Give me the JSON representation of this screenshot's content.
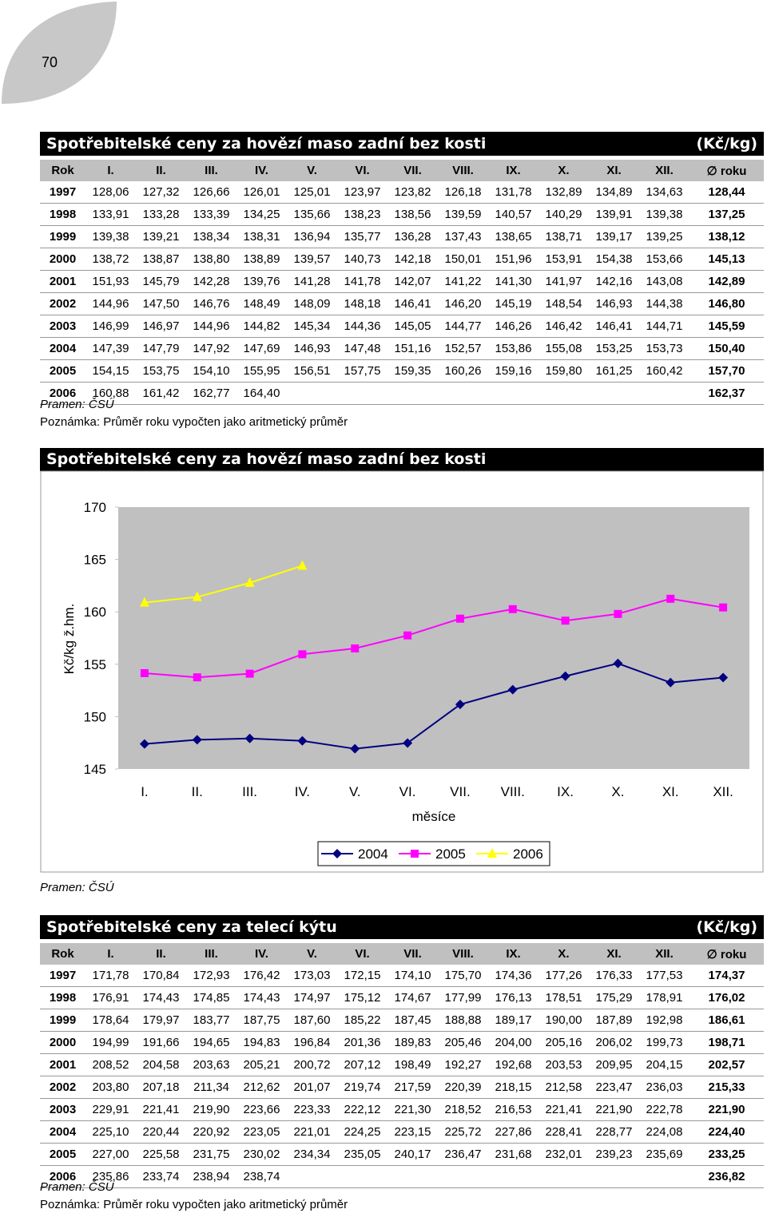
{
  "page_number": "70",
  "table1": {
    "title": "Spotřebitelské ceny za hovězí maso zadní bez kosti",
    "unit": "(Kč/kg)",
    "header": [
      "Rok",
      "I.",
      "II.",
      "III.",
      "IV.",
      "V.",
      "VI.",
      "VII.",
      "VIII.",
      "IX.",
      "X.",
      "XI.",
      "XII.",
      "∅ roku"
    ],
    "rows": [
      [
        "1997",
        "128,06",
        "127,32",
        "126,66",
        "126,01",
        "125,01",
        "123,97",
        "123,82",
        "126,18",
        "131,78",
        "132,89",
        "134,89",
        "134,63",
        "128,44"
      ],
      [
        "1998",
        "133,91",
        "133,28",
        "133,39",
        "134,25",
        "135,66",
        "138,23",
        "138,56",
        "139,59",
        "140,57",
        "140,29",
        "139,91",
        "139,38",
        "137,25"
      ],
      [
        "1999",
        "139,38",
        "139,21",
        "138,34",
        "138,31",
        "136,94",
        "135,77",
        "136,28",
        "137,43",
        "138,65",
        "138,71",
        "139,17",
        "139,25",
        "138,12"
      ],
      [
        "2000",
        "138,72",
        "138,87",
        "138,80",
        "138,89",
        "139,57",
        "140,73",
        "142,18",
        "150,01",
        "151,96",
        "153,91",
        "154,38",
        "153,66",
        "145,13"
      ],
      [
        "2001",
        "151,93",
        "145,79",
        "142,28",
        "139,76",
        "141,28",
        "141,78",
        "142,07",
        "141,22",
        "141,30",
        "141,97",
        "142,16",
        "143,08",
        "142,89"
      ],
      [
        "2002",
        "144,96",
        "147,50",
        "146,76",
        "148,49",
        "148,09",
        "148,18",
        "146,41",
        "146,20",
        "145,19",
        "148,54",
        "146,93",
        "144,38",
        "146,80"
      ],
      [
        "2003",
        "146,99",
        "146,97",
        "144,96",
        "144,82",
        "145,34",
        "144,36",
        "145,05",
        "144,77",
        "146,26",
        "146,42",
        "146,41",
        "144,71",
        "145,59"
      ],
      [
        "2004",
        "147,39",
        "147,79",
        "147,92",
        "147,69",
        "146,93",
        "147,48",
        "151,16",
        "152,57",
        "153,86",
        "155,08",
        "153,25",
        "153,73",
        "150,40"
      ],
      [
        "2005",
        "154,15",
        "153,75",
        "154,10",
        "155,95",
        "156,51",
        "157,75",
        "159,35",
        "160,26",
        "159,16",
        "159,80",
        "161,25",
        "160,42",
        "157,70"
      ],
      [
        "2006",
        "160,88",
        "161,42",
        "162,77",
        "164,40",
        null,
        null,
        null,
        null,
        null,
        null,
        null,
        null,
        "162,37"
      ]
    ],
    "source": "Pramen: ČSÚ",
    "note": "Poznámka: Průměr roku vypočten jako aritmetický průměr"
  },
  "chart_data": {
    "type": "line",
    "title": "Spotřebitelské ceny za hovězí maso zadní bez kosti",
    "categories": [
      "I.",
      "II.",
      "III.",
      "IV.",
      "V.",
      "VI.",
      "VII.",
      "VIII.",
      "IX.",
      "X.",
      "XI.",
      "XII."
    ],
    "series": [
      {
        "name": "2004",
        "color": "#000080",
        "marker": "diamond",
        "values": [
          147.39,
          147.79,
          147.92,
          147.69,
          146.93,
          147.48,
          151.16,
          152.57,
          153.86,
          155.08,
          153.25,
          153.73
        ]
      },
      {
        "name": "2005",
        "color": "#ff00ff",
        "marker": "square",
        "values": [
          154.15,
          153.75,
          154.1,
          155.95,
          156.51,
          157.75,
          159.35,
          160.26,
          159.16,
          159.8,
          161.25,
          160.42
        ]
      },
      {
        "name": "2006",
        "color": "#ffff00",
        "marker": "triangle",
        "values": [
          160.88,
          161.42,
          162.77,
          164.4,
          null,
          null,
          null,
          null,
          null,
          null,
          null,
          null
        ]
      }
    ],
    "ylim": [
      145,
      170
    ],
    "yticks": [
      145,
      150,
      155,
      160,
      165,
      170
    ],
    "ylabel": "Kč/kg ž.hm.",
    "xlabel": "měsíce",
    "legend": "bottom",
    "plot_background": "#c0c0c0"
  },
  "chart_source": "Pramen: ČSÚ",
  "table2": {
    "title": "Spotřebitelské ceny za telecí kýtu",
    "unit": "(Kč/kg)",
    "header": [
      "Rok",
      "I.",
      "II.",
      "III.",
      "IV.",
      "V.",
      "VI.",
      "VII.",
      "VIII.",
      "IX.",
      "X.",
      "XI.",
      "XII.",
      "∅ roku"
    ],
    "rows": [
      [
        "1997",
        "171,78",
        "170,84",
        "172,93",
        "176,42",
        "173,03",
        "172,15",
        "174,10",
        "175,70",
        "174,36",
        "177,26",
        "176,33",
        "177,53",
        "174,37"
      ],
      [
        "1998",
        "176,91",
        "174,43",
        "174,85",
        "174,43",
        "174,97",
        "175,12",
        "174,67",
        "177,99",
        "176,13",
        "178,51",
        "175,29",
        "178,91",
        "176,02"
      ],
      [
        "1999",
        "178,64",
        "179,97",
        "183,77",
        "187,75",
        "187,60",
        "185,22",
        "187,45",
        "188,88",
        "189,17",
        "190,00",
        "187,89",
        "192,98",
        "186,61"
      ],
      [
        "2000",
        "194,99",
        "191,66",
        "194,65",
        "194,83",
        "196,84",
        "201,36",
        "189,83",
        "205,46",
        "204,00",
        "205,16",
        "206,02",
        "199,73",
        "198,71"
      ],
      [
        "2001",
        "208,52",
        "204,58",
        "203,63",
        "205,21",
        "200,72",
        "207,12",
        "198,49",
        "192,27",
        "192,68",
        "203,53",
        "209,95",
        "204,15",
        "202,57"
      ],
      [
        "2002",
        "203,80",
        "207,18",
        "211,34",
        "212,62",
        "201,07",
        "219,74",
        "217,59",
        "220,39",
        "218,15",
        "212,58",
        "223,47",
        "236,03",
        "215,33"
      ],
      [
        "2003",
        "229,91",
        "221,41",
        "219,90",
        "223,66",
        "223,33",
        "222,12",
        "221,30",
        "218,52",
        "216,53",
        "221,41",
        "221,90",
        "222,78",
        "221,90"
      ],
      [
        "2004",
        "225,10",
        "220,44",
        "220,92",
        "223,05",
        "221,01",
        "224,25",
        "223,15",
        "225,72",
        "227,86",
        "228,41",
        "228,77",
        "224,08",
        "224,40"
      ],
      [
        "2005",
        "227,00",
        "225,58",
        "231,75",
        "230,02",
        "234,34",
        "235,05",
        "240,17",
        "236,47",
        "231,68",
        "232,01",
        "239,23",
        "235,69",
        "233,25"
      ],
      [
        "2006",
        "235,86",
        "233,74",
        "238,94",
        "238,74",
        null,
        null,
        null,
        null,
        null,
        null,
        null,
        null,
        "236,82"
      ]
    ],
    "source": "Pramen: ČSÚ",
    "note": "Poznámka: Průměr roku vypočten jako aritmetický průměr"
  }
}
